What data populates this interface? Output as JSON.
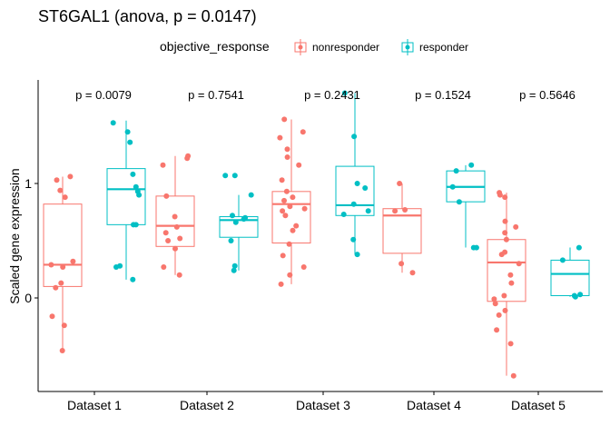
{
  "chart_data": {
    "type": "box",
    "title": "ST6GAL1 (anova, p = 0.0147)",
    "xlabel": "",
    "ylabel": "Scaled gene expression",
    "ylim": [
      -0.8,
      1.9
    ],
    "yticks": [
      0,
      1
    ],
    "grid": false,
    "legend": {
      "title": "objective_response",
      "position": "top",
      "entries": [
        {
          "name": "nonresponder",
          "color": "#F8766D"
        },
        {
          "name": "responder",
          "color": "#00BFC4"
        }
      ]
    },
    "categories": [
      "Dataset 1",
      "Dataset 2",
      "Dataset 3",
      "Dataset 4",
      "Dataset 5"
    ],
    "annotations": [
      "p = 0.0079",
      "p = 0.7541",
      "p = 0.2431",
      "p = 0.1524",
      "p = 0.5646"
    ],
    "series": [
      {
        "name": "nonresponder",
        "color": "#F8766D",
        "boxes": [
          {
            "whisker_low": -0.46,
            "q1": 0.1,
            "median": 0.29,
            "q3": 0.82,
            "whisker_high": 1.06
          },
          {
            "whisker_low": 0.2,
            "q1": 0.45,
            "median": 0.63,
            "q3": 0.89,
            "whisker_high": 1.24
          },
          {
            "whisker_low": 0.12,
            "q1": 0.48,
            "median": 0.82,
            "q3": 0.93,
            "whisker_high": 1.56
          },
          {
            "whisker_low": 0.22,
            "q1": 0.39,
            "median": 0.72,
            "q3": 0.78,
            "whisker_high": 1.0
          },
          {
            "whisker_low": -0.68,
            "q1": -0.03,
            "median": 0.31,
            "q3": 0.51,
            "whisker_high": 0.92
          }
        ],
        "points": [
          [
            -0.46,
            -0.24,
            -0.16,
            0.09,
            0.13,
            0.27,
            0.29,
            0.32,
            0.88,
            0.94,
            1.03,
            1.06
          ],
          [
            0.2,
            0.27,
            0.43,
            0.5,
            0.52,
            0.57,
            0.62,
            0.71,
            0.89,
            1.16,
            1.22,
            1.24
          ],
          [
            0.12,
            0.2,
            0.27,
            0.37,
            0.47,
            0.59,
            0.63,
            0.72,
            0.76,
            0.78,
            0.8,
            0.85,
            0.88,
            0.93,
            1.03,
            1.16,
            1.23,
            1.3,
            1.4,
            1.45,
            1.56
          ],
          [
            0.22,
            0.3,
            0.76,
            0.77,
            1.0
          ],
          [
            -0.68,
            -0.4,
            -0.28,
            -0.15,
            -0.11,
            -0.05,
            -0.01,
            0.02,
            0.13,
            0.2,
            0.3,
            0.38,
            0.4,
            0.51,
            0.57,
            0.62,
            0.67,
            0.88,
            0.9,
            0.92
          ]
        ]
      },
      {
        "name": "responder",
        "color": "#00BFC4",
        "boxes": [
          {
            "whisker_low": 0.16,
            "q1": 0.64,
            "median": 0.95,
            "q3": 1.13,
            "whisker_high": 1.55
          },
          {
            "whisker_low": 0.24,
            "q1": 0.53,
            "median": 0.68,
            "q3": 0.71,
            "whisker_high": 0.9
          },
          {
            "whisker_low": 0.38,
            "q1": 0.72,
            "median": 0.81,
            "q3": 1.15,
            "whisker_high": 1.79
          },
          {
            "whisker_low": 0.44,
            "q1": 0.84,
            "median": 0.97,
            "q3": 1.11,
            "whisker_high": 1.16
          },
          {
            "whisker_low": 0.01,
            "q1": 0.02,
            "median": 0.21,
            "q3": 0.33,
            "whisker_high": 0.44
          }
        ],
        "points": [
          [
            0.16,
            0.27,
            0.28,
            0.64,
            0.64,
            0.9,
            0.93,
            0.97,
            1.08,
            1.36,
            1.45,
            1.53
          ],
          [
            0.24,
            0.28,
            0.5,
            0.66,
            0.69,
            0.7,
            0.72,
            0.9,
            1.07,
            1.07
          ],
          [
            0.38,
            0.51,
            0.73,
            0.76,
            0.82,
            0.96,
            1.0,
            1.41,
            1.79
          ],
          [
            0.44,
            0.44,
            0.84,
            0.97,
            1.11,
            1.16
          ],
          [
            0.01,
            0.02,
            0.03,
            0.33,
            0.44
          ]
        ]
      }
    ]
  }
}
